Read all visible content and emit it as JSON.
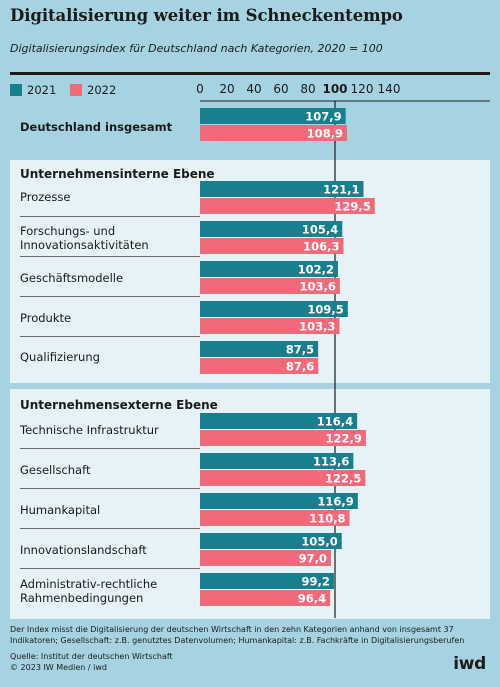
{
  "title": "Digitalisierung weiter im Schneckentempo",
  "subtitle": "Digitalisierungsindex für Deutschland nach Kategorien, 2020 = 100",
  "legend": [
    {
      "label": "2021",
      "color": "#16808e"
    },
    {
      "label": "2022",
      "color": "#ef6b79"
    }
  ],
  "sections": {
    "internal": "Unternehmensinterne Ebene",
    "external": "Unternehmensexterne Ebene"
  },
  "chart_data": {
    "type": "bar",
    "orientation": "horizontal",
    "xlim": [
      0,
      140
    ],
    "xticks": [
      "0",
      "20",
      "40",
      "60",
      "80",
      "100",
      "120",
      "140"
    ],
    "reference_line": 100,
    "categories": [
      "Deutschland insgesamt",
      "Prozesse",
      "Forschungs- und Innovationsaktivitäten",
      "Geschäftsmodelle",
      "Produkte",
      "Qualifizierung",
      "Technische Infrastruktur",
      "Gesellschaft",
      "Humankapital",
      "Innovationslandschaft",
      "Administrativ-rechtliche Rahmenbedingungen"
    ],
    "category_lines": [
      [
        "Deutschland insgesamt"
      ],
      [
        "Prozesse"
      ],
      [
        "Forschungs- und",
        "Innovationsaktivitäten"
      ],
      [
        "Geschäftsmodelle"
      ],
      [
        "Produkte"
      ],
      [
        "Qualifizierung"
      ],
      [
        "Technische Infrastruktur"
      ],
      [
        "Gesellschaft"
      ],
      [
        "Humankapital"
      ],
      [
        "Innovationslandschaft"
      ],
      [
        "Administrativ-rechtliche",
        "Rahmenbedingungen"
      ]
    ],
    "series": [
      {
        "name": "2021",
        "color": "#16808e",
        "values": [
          107.9,
          121.1,
          105.4,
          102.2,
          109.5,
          87.5,
          116.4,
          113.6,
          116.9,
          105.0,
          99.2
        ]
      },
      {
        "name": "2022",
        "color": "#ef6b79",
        "values": [
          108.9,
          129.5,
          106.3,
          103.6,
          103.3,
          87.6,
          122.9,
          122.5,
          110.8,
          97.0,
          96.4
        ]
      }
    ],
    "value_labels": [
      [
        "107,9",
        "121,1",
        "105,4",
        "102,2",
        "109,5",
        "87,5",
        "116,4",
        "113,6",
        "116,9",
        "105,0",
        "99,2"
      ],
      [
        "108,9",
        "129,5",
        "106,3",
        "103,6",
        "103,3",
        "87,6",
        "122,9",
        "122,5",
        "110,8",
        "97,0",
        "96,4"
      ]
    ]
  },
  "footnote": "Der Index misst die Digitalisierung der deutschen Wirtschaft in den zehn Kategorien anhand von insgesamt 37 Indikatoren; Gesellschaft: z.B. genutztes Datenvolumen; Humankapital: z.B. Fachkräfte in Digitalisierungsberufen",
  "source_line": "Quelle: Institut der deutschen Wirtschaft",
  "copyright": "© 2023 IW Medien / iwd",
  "logo_text": "iwd"
}
